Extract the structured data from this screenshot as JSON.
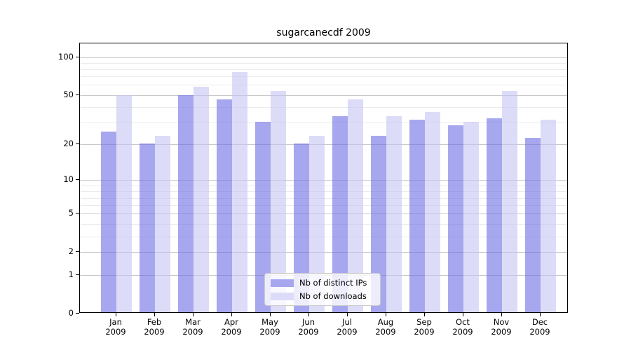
{
  "title": "sugarcanecdf 2009",
  "chart_data": {
    "type": "bar",
    "title": "sugarcanecdf 2009",
    "categories": [
      "Jan",
      "Feb",
      "Mar",
      "Apr",
      "May",
      "Jun",
      "Jul",
      "Aug",
      "Sep",
      "Oct",
      "Nov",
      "Dec"
    ],
    "category_subline": "2009",
    "series": [
      {
        "name": "Nb of distinct IPs",
        "color": "#a7a7ef",
        "values": [
          25,
          20,
          49,
          45,
          30,
          20,
          33,
          23,
          31,
          28,
          32,
          22
        ]
      },
      {
        "name": "Nb of downloads",
        "color": "#dcdcf8",
        "values": [
          49,
          23,
          57,
          75,
          53,
          23,
          45,
          33,
          36,
          30,
          53,
          31
        ]
      }
    ],
    "y_axis": {
      "scale": "log1p",
      "tick_labels": [
        "100",
        "50",
        "20",
        "10",
        "5",
        "2",
        "1",
        "0"
      ],
      "tick_values": [
        100,
        50,
        20,
        10,
        5,
        2,
        1,
        0
      ],
      "minor_gridline_values": [
        90,
        80,
        70,
        60,
        40,
        30,
        9,
        8,
        7,
        6,
        4,
        3
      ],
      "ylim": [
        0,
        120
      ],
      "grid": "on"
    },
    "legend": {
      "position": "lower center",
      "entries": [
        "Nb of distinct IPs",
        "Nb of downloads"
      ]
    },
    "colors": {
      "bar_distinct_ips": "#a7a7ef",
      "bar_downloads": "#dcdcf8",
      "grid_major": "#c8c8c8",
      "grid_minor": "#ebebeb",
      "spine": "#000000"
    }
  }
}
